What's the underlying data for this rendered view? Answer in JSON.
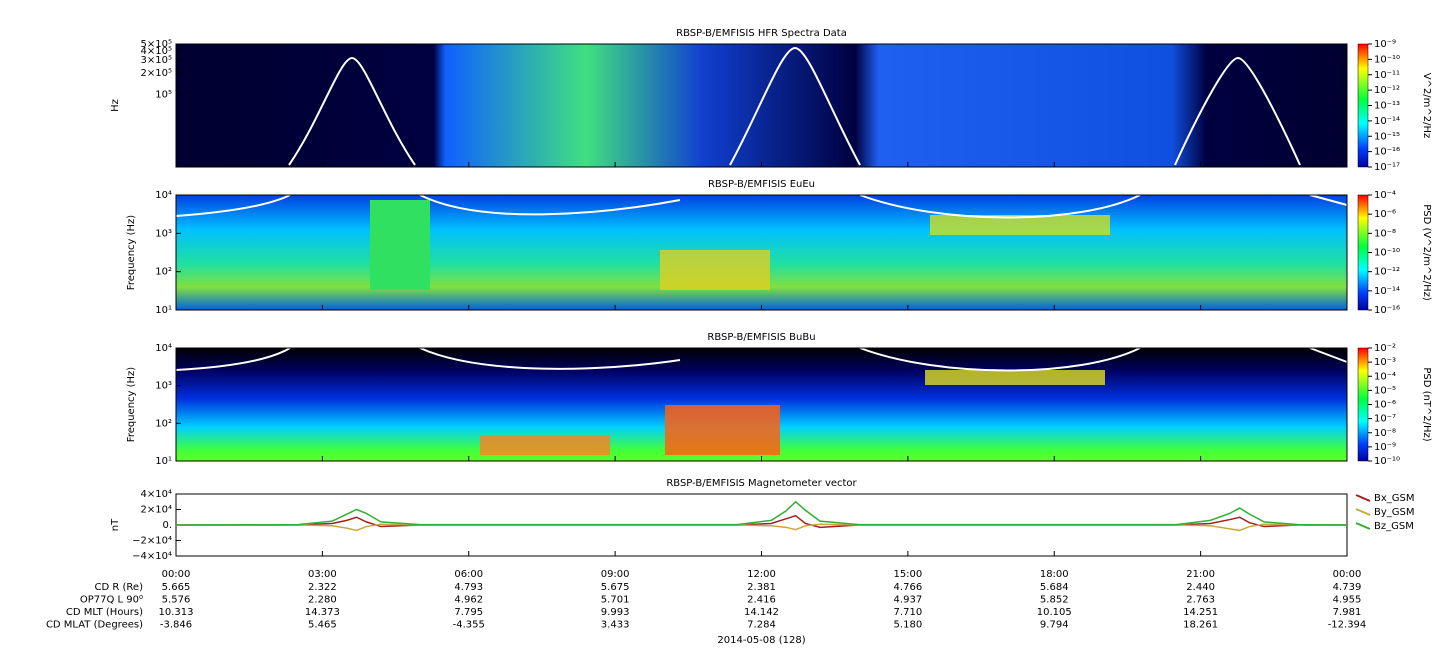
{
  "chart_data": [
    {
      "type": "spectrogram",
      "title": "RBSP-B/EMFISIS  HFR Spectra Data",
      "ylabel": "Hz",
      "ylog": true,
      "ylim": [
        10000,
        500000
      ],
      "yticks": [
        {
          "value": 500000,
          "label": "5×10⁵"
        },
        {
          "value": 400000,
          "label": "4×10⁵"
        },
        {
          "value": 300000,
          "label": "3×10⁵"
        },
        {
          "value": 200000,
          "label": "2×10⁵"
        },
        {
          "value": 100000,
          "label": "10⁵"
        }
      ],
      "zlabel": "V^2/m^2/Hz",
      "zlog": true,
      "zlim": [
        1e-17,
        1e-09
      ],
      "zticks": [
        {
          "value": 1e-09,
          "label": "10⁻⁹"
        },
        {
          "value": 1e-10,
          "label": "10⁻¹⁰"
        },
        {
          "value": 1e-11,
          "label": "10⁻¹¹"
        },
        {
          "value": 1e-12,
          "label": "10⁻¹²"
        },
        {
          "value": 1e-13,
          "label": "10⁻¹³"
        },
        {
          "value": 1e-14,
          "label": "10⁻¹⁴"
        },
        {
          "value": 1e-15,
          "label": "10⁻¹⁵"
        },
        {
          "value": 1e-16,
          "label": "10⁻¹⁶"
        },
        {
          "value": 1e-17,
          "label": "10⁻¹⁷"
        }
      ]
    },
    {
      "type": "spectrogram",
      "title": "RBSP-B/EMFISIS  EuEu",
      "ylabel": "Frequency (Hz)",
      "ylog": true,
      "ylim": [
        10,
        10000
      ],
      "yticks": [
        {
          "value": 10000,
          "label": "10⁴"
        },
        {
          "value": 1000,
          "label": "10³"
        },
        {
          "value": 100,
          "label": "10²"
        },
        {
          "value": 10,
          "label": "10¹"
        }
      ],
      "zlabel": "PSD (V^2/m^2/Hz)",
      "zlog": true,
      "zlim": [
        1e-16,
        0.0001
      ],
      "zticks": [
        {
          "value": 0.0001,
          "label": "10⁻⁴"
        },
        {
          "value": 1e-06,
          "label": "10⁻⁶"
        },
        {
          "value": 1e-08,
          "label": "10⁻⁸"
        },
        {
          "value": 1e-10,
          "label": "10⁻¹⁰"
        },
        {
          "value": 1e-12,
          "label": "10⁻¹²"
        },
        {
          "value": 1e-14,
          "label": "10⁻¹⁴"
        },
        {
          "value": 1e-16,
          "label": "10⁻¹⁶"
        }
      ]
    },
    {
      "type": "spectrogram",
      "title": "RBSP-B/EMFISIS  BuBu",
      "ylabel": "Frequency (Hz)",
      "ylog": true,
      "ylim": [
        10,
        10000
      ],
      "yticks": [
        {
          "value": 10000,
          "label": "10⁴"
        },
        {
          "value": 1000,
          "label": "10³"
        },
        {
          "value": 100,
          "label": "10²"
        },
        {
          "value": 10,
          "label": "10¹"
        }
      ],
      "zlabel": "PSD (nT^2/Hz)",
      "zlog": true,
      "zlim": [
        1e-10,
        0.01
      ],
      "zticks": [
        {
          "value": 0.01,
          "label": "10⁻²"
        },
        {
          "value": 0.001,
          "label": "10⁻³"
        },
        {
          "value": 0.0001,
          "label": "10⁻⁴"
        },
        {
          "value": 1e-05,
          "label": "10⁻⁵"
        },
        {
          "value": 1e-06,
          "label": "10⁻⁶"
        },
        {
          "value": 1e-07,
          "label": "10⁻⁷"
        },
        {
          "value": 1e-08,
          "label": "10⁻⁸"
        },
        {
          "value": 1e-09,
          "label": "10⁻⁹"
        },
        {
          "value": 1e-10,
          "label": "10⁻¹⁰"
        }
      ]
    },
    {
      "type": "line",
      "title": "RBSP-B/EMFISIS  Magnetometer vector",
      "ylabel": "nT",
      "ylim": [
        -40000,
        40000
      ],
      "yticks": [
        {
          "value": 40000,
          "label": "4×10⁴"
        },
        {
          "value": 20000,
          "label": "2×10⁴"
        },
        {
          "value": 0,
          "label": "0."
        },
        {
          "value": -20000,
          "label": "−2×10⁴"
        },
        {
          "value": -40000,
          "label": "−4×10⁴"
        }
      ],
      "xlim": [
        0,
        24
      ],
      "xticks": [
        {
          "value": 0,
          "label": "00:00"
        },
        {
          "value": 3,
          "label": "03:00"
        },
        {
          "value": 6,
          "label": "06:00"
        },
        {
          "value": 9,
          "label": "09:00"
        },
        {
          "value": 12,
          "label": "12:00"
        },
        {
          "value": 15,
          "label": "15:00"
        },
        {
          "value": 18,
          "label": "18:00"
        },
        {
          "value": 21,
          "label": "21:00"
        },
        {
          "value": 24,
          "label": "00:00"
        }
      ],
      "xlabel": "2014-05-08 (128)",
      "x": [
        0,
        2.5,
        3.2,
        3.5,
        3.7,
        3.9,
        4.2,
        5,
        11.5,
        12.2,
        12.5,
        12.7,
        12.9,
        13.2,
        14,
        20.5,
        21.2,
        21.6,
        21.8,
        22.0,
        22.3,
        23,
        24
      ],
      "series": [
        {
          "name": "Bx_GSM",
          "color": "#a02020",
          "values": [
            0,
            0,
            2000,
            6000,
            10000,
            4000,
            -2000,
            0,
            0,
            2000,
            8000,
            12000,
            2000,
            -3000,
            0,
            0,
            2000,
            7000,
            10000,
            3000,
            -2000,
            0,
            0
          ]
        },
        {
          "name": "By_GSM",
          "color": "#c8a840",
          "values": [
            0,
            0,
            -1000,
            -4000,
            -7000,
            -2000,
            1000,
            0,
            0,
            -1000,
            -3000,
            -6000,
            -1000,
            1000,
            0,
            0,
            -1000,
            -5000,
            -7000,
            -2000,
            1000,
            0,
            0
          ]
        },
        {
          "name": "Bz_GSM",
          "color": "#30b030",
          "values": [
            0,
            500,
            5000,
            14000,
            20000,
            15000,
            4000,
            500,
            500,
            6000,
            18000,
            30000,
            19000,
            5000,
            500,
            500,
            6000,
            15000,
            22000,
            14000,
            4000,
            500,
            0
          ]
        }
      ]
    }
  ],
  "ephemeris": {
    "rows": [
      {
        "label": "CD R (Re)",
        "values": [
          "5.665",
          "2.322",
          "4.793",
          "5.675",
          "2.381",
          "4.766",
          "5.684",
          "2.440",
          "4.739"
        ]
      },
      {
        "label": "OP77Q L 90⁰",
        "values": [
          "5.576",
          "2.280",
          "4.962",
          "5.701",
          "2.416",
          "4.937",
          "5.852",
          "2.763",
          "4.955"
        ]
      },
      {
        "label": "CD MLT (Hours)",
        "values": [
          "10.313",
          "14.373",
          "7.795",
          "9.993",
          "14.142",
          "7.710",
          "10.105",
          "14.251",
          "7.981"
        ]
      },
      {
        "label": "CD MLAT (Degrees)",
        "values": [
          "-3.846",
          "5.465",
          "-4.355",
          "3.433",
          "7.284",
          "5.180",
          "9.794",
          "18.261",
          "-12.394"
        ]
      }
    ]
  }
}
